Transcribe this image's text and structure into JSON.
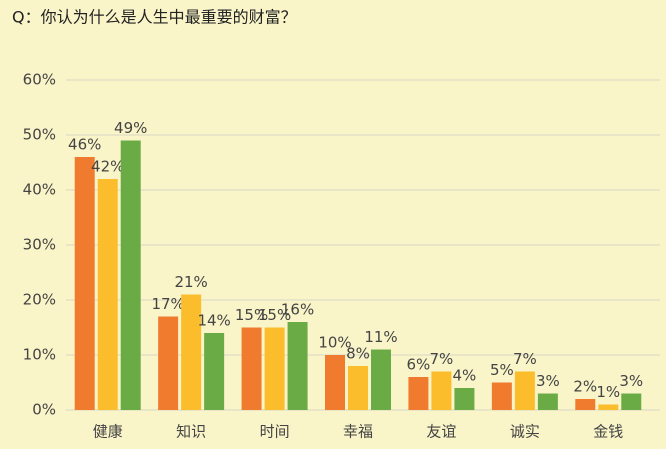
{
  "chart_data": {
    "type": "bar",
    "title": "Q：你认为什么是人生中最重要的财富？",
    "categories": [
      "健康",
      "知识",
      "时间",
      "幸福",
      "友谊",
      "诚实",
      "金钱"
    ],
    "series": [
      {
        "color": "#f07b2e",
        "values": [
          46,
          17,
          15,
          10,
          6,
          5,
          2
        ],
        "value_labels": [
          "46%",
          "17%",
          "15%",
          "10%",
          "6%",
          "5%",
          "2%"
        ]
      },
      {
        "color": "#fbbd2b",
        "values": [
          42,
          21,
          15,
          8,
          7,
          7,
          1
        ],
        "value_labels": [
          "42%",
          "21%",
          "15%",
          "8%",
          "7%",
          "7%",
          "1%"
        ]
      },
      {
        "color": "#6bab45",
        "values": [
          49,
          14,
          16,
          11,
          4,
          3,
          3
        ],
        "value_labels": [
          "49%",
          "14%",
          "16%",
          "11%",
          "4%",
          "3%",
          "3%"
        ]
      }
    ],
    "ylim": [
      0,
      60
    ],
    "yticks": [
      {
        "value": 0,
        "label": "0%"
      },
      {
        "value": 10,
        "label": "10%"
      },
      {
        "value": 20,
        "label": "20%"
      },
      {
        "value": 30,
        "label": "30%"
      },
      {
        "value": 40,
        "label": "40%"
      },
      {
        "value": 50,
        "label": "50%"
      },
      {
        "value": 60,
        "label": "60%"
      }
    ],
    "grid": true
  }
}
